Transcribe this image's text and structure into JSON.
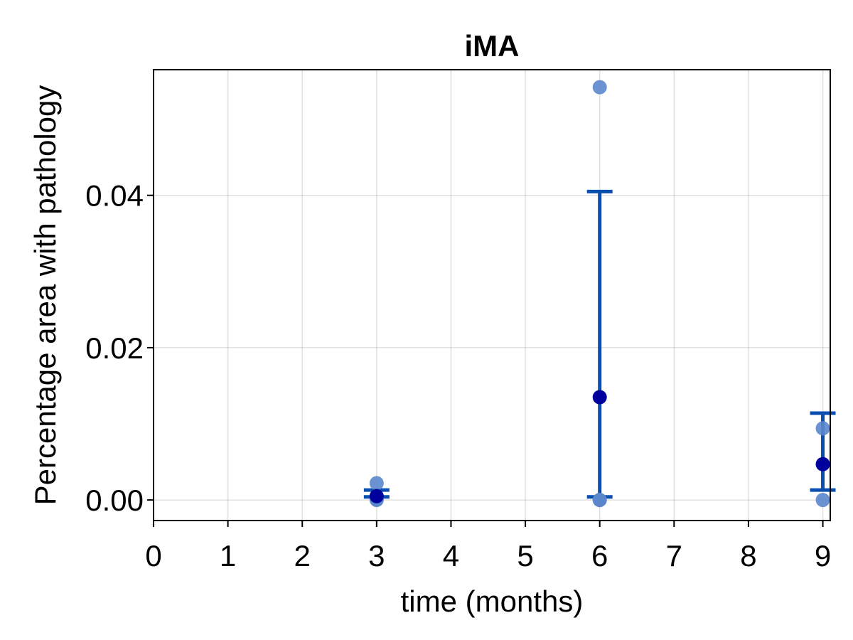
{
  "chart_data": {
    "type": "scatter",
    "title": "iMA",
    "xlabel": "time (months)",
    "ylabel": "Percentage area with pathology",
    "xlim": [
      0,
      9.1
    ],
    "ylim": [
      -0.0027,
      0.0565
    ],
    "x_ticks": [
      "0",
      "1",
      "2",
      "3",
      "4",
      "5",
      "6",
      "7",
      "8",
      "9"
    ],
    "y_ticks": [
      "0.00",
      "0.02",
      "0.04"
    ],
    "grid": true,
    "legend": "none",
    "colors": {
      "individual": "#5b86cc",
      "mean": "#00009c",
      "error_bar": "#0a4fb0"
    },
    "series": [
      {
        "points": [
          {
            "x": 3,
            "y": 0.0022
          },
          {
            "x": 3,
            "y": 0.0001
          },
          {
            "x": 3,
            "y": 0.0
          },
          {
            "x": 6,
            "y": 0.0542
          },
          {
            "x": 6,
            "y": 0.0
          },
          {
            "x": 6,
            "y": 0.0
          },
          {
            "x": 9,
            "y": 0.0094
          },
          {
            "x": 9,
            "y": 0.0
          }
        ]
      },
      {
        "points": [
          {
            "x": 3,
            "y": 0.0005
          },
          {
            "x": 6,
            "y": 0.0135
          },
          {
            "x": 9,
            "y": 0.0047
          }
        ]
      }
    ],
    "error_bars": [
      {
        "x": 3,
        "low": 0.0004,
        "high": 0.0013
      },
      {
        "x": 6,
        "low": 0.0004,
        "high": 0.0405
      },
      {
        "x": 9,
        "low": 0.0013,
        "high": 0.0114
      }
    ]
  }
}
